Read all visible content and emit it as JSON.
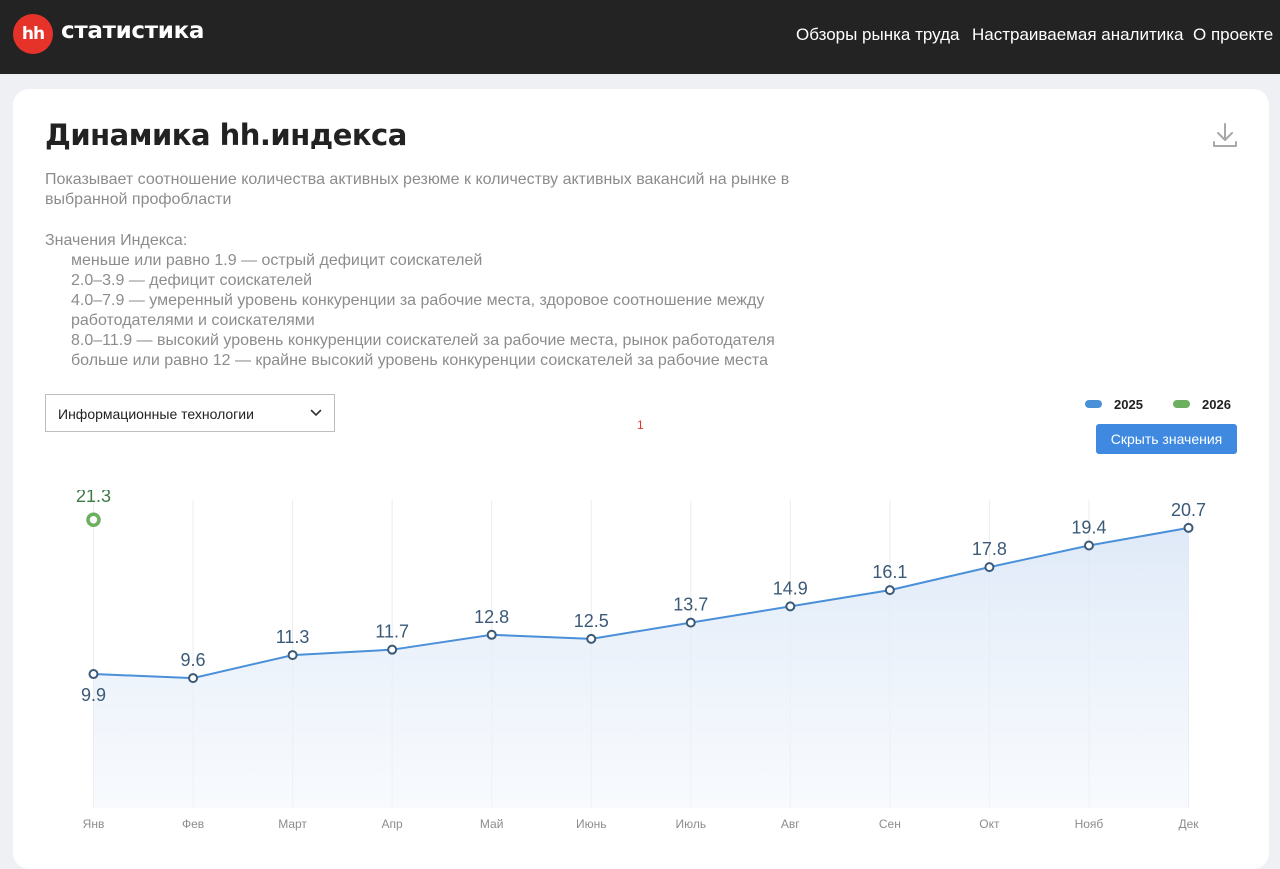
{
  "header": {
    "logo_mark": "hh",
    "logo_text": "статистика",
    "nav": [
      "Обзоры рынка труда",
      "Настраиваемая аналитика",
      "О проекте"
    ]
  },
  "page": {
    "title": "Динамика hh.индекса",
    "description": "Показывает соотношение количества активных резюме к количеству активных вакансий на рынке в выбранной профобласти",
    "scale_heading": "Значения Индекса:",
    "scale_items": [
      "меньше или равно 1.9 — острый дефицит соискателей",
      "2.0–3.9 — дефицит соискателей",
      "4.0–7.9 — умеренный уровень конкуренции за рабочие места, здоровое соотношение между работодателями и соискателями",
      "8.0–11.9 — высокий уровень конкуренции соискателей за рабочие места, рынок работодателя",
      "больше или равно 12 — крайне высокий уровень конкуренции соискателей за рабочие места"
    ],
    "marker_text": "1"
  },
  "controls": {
    "profarea_selected": "Информационные технологии",
    "hide_values_button": "Скрыть значения"
  },
  "colors": {
    "series_2025": "#4a90d9",
    "series_2026": "#6cb05f",
    "brand": "#e5332a",
    "button": "#3f8ae0"
  },
  "chart_data": {
    "type": "line",
    "categories": [
      "Янв",
      "Фев",
      "Март",
      "Апр",
      "Май",
      "Июнь",
      "Июль",
      "Авг",
      "Сен",
      "Окт",
      "Нояб",
      "Дек"
    ],
    "series": [
      {
        "name": "2025",
        "values": [
          9.9,
          9.6,
          11.3,
          11.7,
          12.8,
          12.5,
          13.7,
          14.9,
          16.1,
          17.8,
          19.4,
          20.7
        ]
      },
      {
        "name": "2026",
        "values": [
          21.3,
          null,
          null,
          null,
          null,
          null,
          null,
          null,
          null,
          null,
          null,
          null
        ]
      }
    ],
    "ylim": [
      0,
      23.5
    ],
    "legend_position": "top-right",
    "grid": "vertical",
    "area_fill": true,
    "data_labels": true
  }
}
